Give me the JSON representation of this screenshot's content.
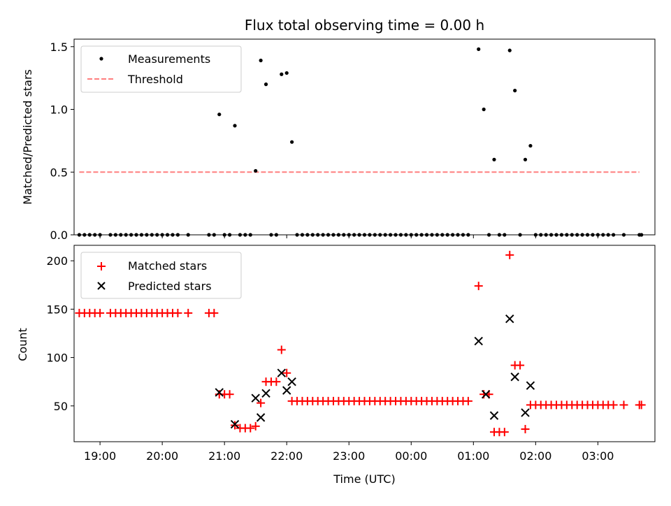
{
  "chart_data": [
    {
      "type": "scatter",
      "title": "Flux total observing time = 0.00 h",
      "xlabel": "",
      "ylabel": "Matched/Predicted stars",
      "ylim": [
        0,
        1.56
      ],
      "xlim": [
        "18:35",
        "03:55"
      ],
      "yticks": [
        {
          "v": 0,
          "label": "0.0"
        },
        {
          "v": 0.5,
          "label": "0.5"
        },
        {
          "v": 1.0,
          "label": "1.0"
        },
        {
          "v": 1.5,
          "label": "1.5"
        }
      ],
      "legend": {
        "placement": "top-left",
        "entries": [
          "Measurements",
          "Threshold"
        ]
      },
      "threshold": {
        "name": "Threshold",
        "value": 0.5,
        "x_start": "18:40",
        "x_end": "03:40",
        "color": "#ff7f7f"
      },
      "series": [
        {
          "name": "Measurements",
          "color": "#000000",
          "points": [
            [
              "18:40",
              0
            ],
            [
              "18:45",
              0
            ],
            [
              "18:50",
              0
            ],
            [
              "18:55",
              0
            ],
            [
              "19:00",
              0
            ],
            [
              "19:10",
              0
            ],
            [
              "19:15",
              0
            ],
            [
              "19:20",
              0
            ],
            [
              "19:25",
              0
            ],
            [
              "19:30",
              0
            ],
            [
              "19:35",
              0
            ],
            [
              "19:40",
              0
            ],
            [
              "19:45",
              0
            ],
            [
              "19:50",
              0
            ],
            [
              "19:55",
              0
            ],
            [
              "20:00",
              0
            ],
            [
              "20:05",
              0
            ],
            [
              "20:10",
              0
            ],
            [
              "20:15",
              0
            ],
            [
              "20:25",
              0
            ],
            [
              "20:45",
              0
            ],
            [
              "20:50",
              0
            ],
            [
              "20:55",
              0.96
            ],
            [
              "21:00",
              0
            ],
            [
              "21:05",
              0
            ],
            [
              "21:10",
              0.87
            ],
            [
              "21:15",
              0
            ],
            [
              "21:20",
              0
            ],
            [
              "21:25",
              0
            ],
            [
              "21:30",
              0.51
            ],
            [
              "21:35",
              1.39
            ],
            [
              "21:40",
              1.2
            ],
            [
              "21:45",
              0
            ],
            [
              "21:50",
              0
            ],
            [
              "21:55",
              1.28
            ],
            [
              "22:00",
              1.29
            ],
            [
              "22:05",
              0.74
            ],
            [
              "22:10",
              0
            ],
            [
              "22:15",
              0
            ],
            [
              "22:20",
              0
            ],
            [
              "22:25",
              0
            ],
            [
              "22:30",
              0
            ],
            [
              "22:35",
              0
            ],
            [
              "22:40",
              0
            ],
            [
              "22:45",
              0
            ],
            [
              "22:50",
              0
            ],
            [
              "22:55",
              0
            ],
            [
              "23:00",
              0
            ],
            [
              "23:05",
              0
            ],
            [
              "23:10",
              0
            ],
            [
              "23:15",
              0
            ],
            [
              "23:20",
              0
            ],
            [
              "23:25",
              0
            ],
            [
              "23:30",
              0
            ],
            [
              "23:35",
              0
            ],
            [
              "23:40",
              0
            ],
            [
              "23:45",
              0
            ],
            [
              "23:50",
              0
            ],
            [
              "23:55",
              0
            ],
            [
              "00:00",
              0
            ],
            [
              "00:05",
              0
            ],
            [
              "00:10",
              0
            ],
            [
              "00:15",
              0
            ],
            [
              "00:20",
              0
            ],
            [
              "00:25",
              0
            ],
            [
              "00:30",
              0
            ],
            [
              "00:35",
              0
            ],
            [
              "00:40",
              0
            ],
            [
              "00:45",
              0
            ],
            [
              "00:50",
              0
            ],
            [
              "00:55",
              0
            ],
            [
              "01:05",
              1.48
            ],
            [
              "01:10",
              1.0
            ],
            [
              "01:15",
              0
            ],
            [
              "01:20",
              0.6
            ],
            [
              "01:25",
              0
            ],
            [
              "01:30",
              0
            ],
            [
              "01:35",
              1.47
            ],
            [
              "01:40",
              1.15
            ],
            [
              "01:45",
              0
            ],
            [
              "01:50",
              0.6
            ],
            [
              "01:55",
              0.71
            ],
            [
              "02:00",
              0
            ],
            [
              "02:05",
              0
            ],
            [
              "02:10",
              0
            ],
            [
              "02:15",
              0
            ],
            [
              "02:20",
              0
            ],
            [
              "02:25",
              0
            ],
            [
              "02:30",
              0
            ],
            [
              "02:35",
              0
            ],
            [
              "02:40",
              0
            ],
            [
              "02:45",
              0
            ],
            [
              "02:50",
              0
            ],
            [
              "02:55",
              0
            ],
            [
              "03:00",
              0
            ],
            [
              "03:05",
              0
            ],
            [
              "03:10",
              0
            ],
            [
              "03:15",
              0
            ],
            [
              "03:25",
              0
            ],
            [
              "03:40",
              0
            ],
            [
              "03:42",
              0
            ]
          ]
        }
      ]
    },
    {
      "type": "scatter",
      "title": "",
      "xlabel": "Time (UTC)",
      "ylabel": "Count",
      "ylim": [
        13,
        216
      ],
      "xlim": [
        "18:35",
        "03:55"
      ],
      "yticks": [
        {
          "v": 50,
          "label": "50"
        },
        {
          "v": 100,
          "label": "100"
        },
        {
          "v": 150,
          "label": "150"
        },
        {
          "v": 200,
          "label": "200"
        }
      ],
      "xticks": [
        {
          "v": "19:00",
          "label": "19:00"
        },
        {
          "v": "20:00",
          "label": "20:00"
        },
        {
          "v": "21:00",
          "label": "21:00"
        },
        {
          "v": "22:00",
          "label": "22:00"
        },
        {
          "v": "23:00",
          "label": "23:00"
        },
        {
          "v": "00:00",
          "label": "00:00"
        },
        {
          "v": "01:00",
          "label": "01:00"
        },
        {
          "v": "02:00",
          "label": "02:00"
        },
        {
          "v": "03:00",
          "label": "03:00"
        }
      ],
      "legend": {
        "placement": "top-left",
        "entries": [
          "Matched stars",
          "Predicted stars"
        ]
      },
      "series": [
        {
          "name": "Matched stars",
          "color": "#ff0000",
          "marker": "plus",
          "points": [
            [
              "18:40",
              146
            ],
            [
              "18:45",
              146
            ],
            [
              "18:50",
              146
            ],
            [
              "18:55",
              146
            ],
            [
              "19:00",
              146
            ],
            [
              "19:10",
              146
            ],
            [
              "19:15",
              146
            ],
            [
              "19:20",
              146
            ],
            [
              "19:25",
              146
            ],
            [
              "19:30",
              146
            ],
            [
              "19:35",
              146
            ],
            [
              "19:40",
              146
            ],
            [
              "19:45",
              146
            ],
            [
              "19:50",
              146
            ],
            [
              "19:55",
              146
            ],
            [
              "20:00",
              146
            ],
            [
              "20:05",
              146
            ],
            [
              "20:10",
              146
            ],
            [
              "20:15",
              146
            ],
            [
              "20:25",
              146
            ],
            [
              "20:45",
              146
            ],
            [
              "20:50",
              146
            ],
            [
              "20:55",
              62
            ],
            [
              "21:00",
              62
            ],
            [
              "21:05",
              62
            ],
            [
              "21:10",
              30
            ],
            [
              "21:15",
              27
            ],
            [
              "21:20",
              27
            ],
            [
              "21:25",
              27
            ],
            [
              "21:30",
              29
            ],
            [
              "21:35",
              53
            ],
            [
              "21:40",
              75
            ],
            [
              "21:45",
              75
            ],
            [
              "21:50",
              75
            ],
            [
              "21:55",
              108
            ],
            [
              "22:00",
              84
            ],
            [
              "22:05",
              55
            ],
            [
              "22:10",
              55
            ],
            [
              "22:15",
              55
            ],
            [
              "22:20",
              55
            ],
            [
              "22:25",
              55
            ],
            [
              "22:30",
              55
            ],
            [
              "22:35",
              55
            ],
            [
              "22:40",
              55
            ],
            [
              "22:45",
              55
            ],
            [
              "22:50",
              55
            ],
            [
              "22:55",
              55
            ],
            [
              "23:00",
              55
            ],
            [
              "23:05",
              55
            ],
            [
              "23:10",
              55
            ],
            [
              "23:15",
              55
            ],
            [
              "23:20",
              55
            ],
            [
              "23:25",
              55
            ],
            [
              "23:30",
              55
            ],
            [
              "23:35",
              55
            ],
            [
              "23:40",
              55
            ],
            [
              "23:45",
              55
            ],
            [
              "23:50",
              55
            ],
            [
              "23:55",
              55
            ],
            [
              "00:00",
              55
            ],
            [
              "00:05",
              55
            ],
            [
              "00:10",
              55
            ],
            [
              "00:15",
              55
            ],
            [
              "00:20",
              55
            ],
            [
              "00:25",
              55
            ],
            [
              "00:30",
              55
            ],
            [
              "00:35",
              55
            ],
            [
              "00:40",
              55
            ],
            [
              "00:45",
              55
            ],
            [
              "00:50",
              55
            ],
            [
              "00:55",
              55
            ],
            [
              "01:05",
              174
            ],
            [
              "01:10",
              62
            ],
            [
              "01:15",
              62
            ],
            [
              "01:20",
              23
            ],
            [
              "01:25",
              23
            ],
            [
              "01:30",
              23
            ],
            [
              "01:35",
              206
            ],
            [
              "01:40",
              92
            ],
            [
              "01:45",
              92
            ],
            [
              "01:50",
              26
            ],
            [
              "01:55",
              51
            ],
            [
              "02:00",
              51
            ],
            [
              "02:05",
              51
            ],
            [
              "02:10",
              51
            ],
            [
              "02:15",
              51
            ],
            [
              "02:20",
              51
            ],
            [
              "02:25",
              51
            ],
            [
              "02:30",
              51
            ],
            [
              "02:35",
              51
            ],
            [
              "02:40",
              51
            ],
            [
              "02:45",
              51
            ],
            [
              "02:50",
              51
            ],
            [
              "02:55",
              51
            ],
            [
              "03:00",
              51
            ],
            [
              "03:05",
              51
            ],
            [
              "03:10",
              51
            ],
            [
              "03:15",
              51
            ],
            [
              "03:25",
              51
            ],
            [
              "03:40",
              51
            ],
            [
              "03:42",
              51
            ]
          ]
        },
        {
          "name": "Predicted stars",
          "color": "#000000",
          "marker": "x",
          "points": [
            [
              "20:55",
              64
            ],
            [
              "21:10",
              31
            ],
            [
              "21:30",
              58
            ],
            [
              "21:35",
              38
            ],
            [
              "21:40",
              63
            ],
            [
              "21:55",
              84
            ],
            [
              "22:00",
              66
            ],
            [
              "22:05",
              75
            ],
            [
              "01:05",
              117
            ],
            [
              "01:12",
              62
            ],
            [
              "01:20",
              40
            ],
            [
              "01:35",
              140
            ],
            [
              "01:40",
              80
            ],
            [
              "01:50",
              43
            ],
            [
              "01:55",
              71
            ]
          ]
        }
      ]
    }
  ]
}
